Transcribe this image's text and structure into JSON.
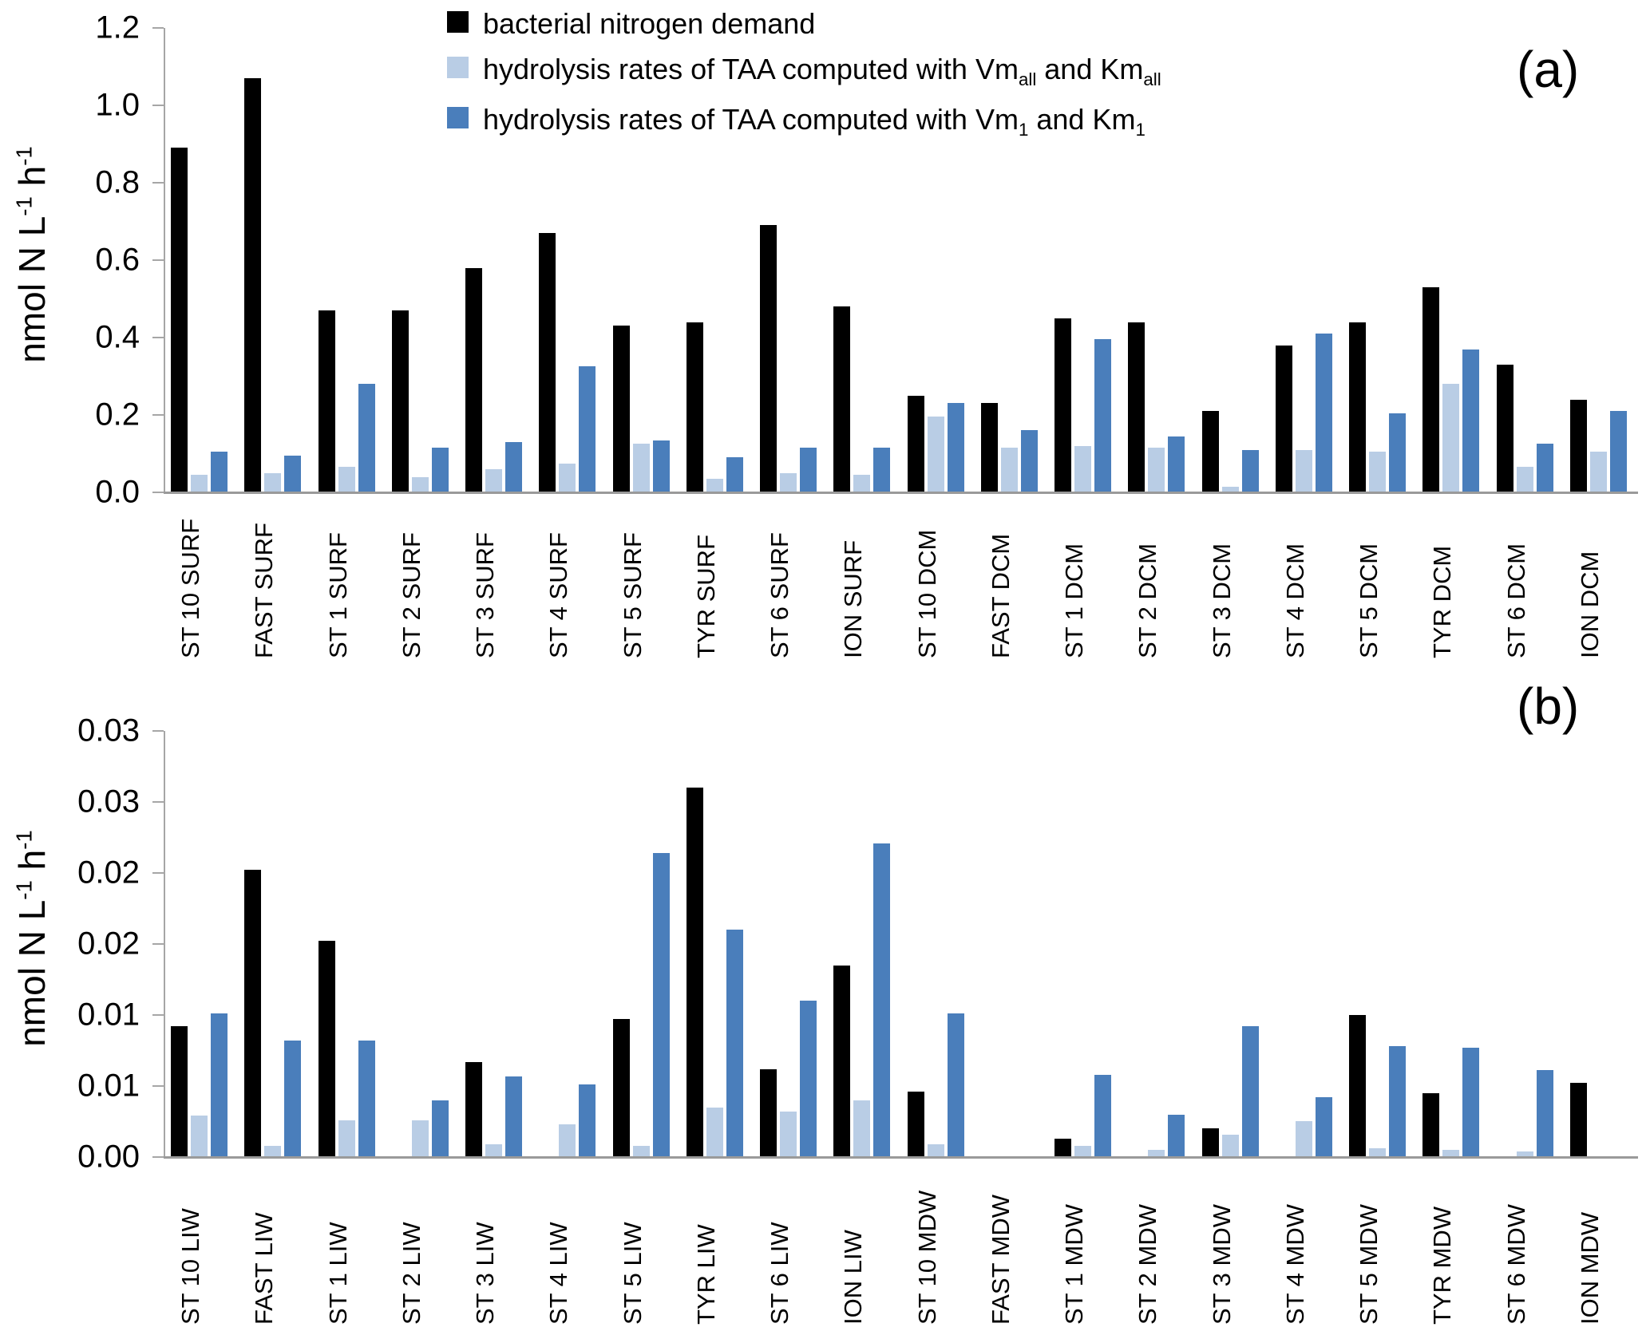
{
  "legend": {
    "items": [
      {
        "label": "bacterial nitrogen demand",
        "color": "#000000"
      },
      {
        "before": "hydrolysis rates of TAA computed with Vm",
        "sub1": "all",
        "mid": " and Km",
        "sub2": "all",
        "color": "#b9cde5"
      },
      {
        "before": "hydrolysis rates of TAA computed with Vm",
        "sub1": "1",
        "mid": " and Km",
        "sub2": "1",
        "color": "#4a7ebb"
      }
    ]
  },
  "y_axis_title": {
    "parts": [
      {
        "t": "nmol N L"
      },
      {
        "sup": "-1"
      },
      {
        "t": " h"
      },
      {
        "sup": "-1"
      }
    ]
  },
  "chart_data": [
    {
      "type": "bar",
      "panel_label": "(a)",
      "title": "",
      "xlabel": "",
      "ylabel": "nmol N L-1 h-1",
      "ylim": [
        0,
        1.2
      ],
      "grid": false,
      "legend_position": "top-center",
      "y_tick_labels": [
        "0.0",
        "0.2",
        "0.4",
        "0.6",
        "0.8",
        "1.0",
        "1.2"
      ],
      "categories": [
        "ST 10 SURF",
        "FAST SURF",
        "ST 1 SURF",
        "ST 2 SURF",
        "ST 3 SURF",
        "ST 4 SURF",
        "ST 5 SURF",
        "TYR SURF",
        "ST 6 SURF",
        "ION SURF",
        "ST 10 DCM",
        "FAST DCM",
        "ST 1 DCM",
        "ST 2 DCM",
        "ST 3 DCM",
        "ST 4 DCM",
        "ST 5 DCM",
        "TYR DCM",
        "ST 6 DCM",
        "ION DCM"
      ],
      "series": [
        {
          "name": "bacterial nitrogen demand",
          "color": "#000000",
          "values": [
            0.89,
            1.07,
            0.47,
            0.47,
            0.58,
            0.67,
            0.43,
            0.44,
            0.69,
            0.48,
            0.25,
            0.23,
            0.45,
            0.44,
            0.21,
            0.38,
            0.44,
            0.53,
            0.33,
            0.24
          ]
        },
        {
          "name": "hydrolysis rates of TAA computed with Vmall and Kmall",
          "color": "#b9cde5",
          "values": [
            0.045,
            0.05,
            0.065,
            0.04,
            0.06,
            0.075,
            0.125,
            0.035,
            0.05,
            0.045,
            0.195,
            0.115,
            0.12,
            0.115,
            0.015,
            0.11,
            0.105,
            0.28,
            0.065,
            0.105
          ]
        },
        {
          "name": "hydrolysis rates of TAA computed with Vm1 and Km1",
          "color": "#4a7ebb",
          "values": [
            0.105,
            0.095,
            0.28,
            0.115,
            0.13,
            0.325,
            0.135,
            0.09,
            0.115,
            0.115,
            0.23,
            0.16,
            0.395,
            0.145,
            0.11,
            0.41,
            0.205,
            0.37,
            0.125,
            0.21
          ]
        }
      ]
    },
    {
      "type": "bar",
      "panel_label": "(b)",
      "title": "",
      "xlabel": "",
      "ylabel": "nmol N L-1 h-1",
      "ylim": [
        0,
        0.03
      ],
      "grid": false,
      "legend_position": "none",
      "y_tick_labels": [
        "0.00",
        "0.01",
        "0.01",
        "0.02",
        "0.02",
        "0.03",
        "0.03"
      ],
      "categories": [
        "ST 10 LIW",
        "FAST LIW",
        "ST 1 LIW",
        "ST 2 LIW",
        "ST 3 LIW",
        "ST 4 LIW",
        "ST 5 LIW",
        "TYR LIW",
        "ST 6 LIW",
        "ION LIW",
        "ST 10 MDW",
        "FAST MDW",
        "ST 1 MDW",
        "ST 2 MDW",
        "ST 3 MDW",
        "ST 4 MDW",
        "ST 5 MDW",
        "TYR MDW",
        "ST 6 MDW",
        "ION MDW"
      ],
      "series": [
        {
          "name": "bacterial nitrogen demand",
          "color": "#000000",
          "values": [
            0.0092,
            0.0202,
            0.0152,
            0,
            0.0067,
            0,
            0.0097,
            0.026,
            0.0062,
            0.0135,
            0.0046,
            0,
            0.0013,
            0,
            0.002,
            0,
            0.01,
            0.0045,
            0,
            0.0052
          ]
        },
        {
          "name": "hydrolysis rates of TAA computed with Vmall and Kmall",
          "color": "#b9cde5",
          "values": [
            0.0029,
            0.0008,
            0.0026,
            0.0026,
            0.0009,
            0.0023,
            0.0008,
            0.0035,
            0.0032,
            0.004,
            0.0009,
            0,
            0.0008,
            0.0005,
            0.0016,
            0.0025,
            0.0006,
            0.0005,
            0.0004,
            0
          ]
        },
        {
          "name": "hydrolysis rates of TAA computed with Vm1 and Km1",
          "color": "#4a7ebb",
          "values": [
            0.0101,
            0.0082,
            0.0082,
            0.004,
            0.0057,
            0.0051,
            0.0214,
            0.016,
            0.011,
            0.0221,
            0.0101,
            0,
            0.0058,
            0.003,
            0.0092,
            0.0042,
            0.0078,
            0.0077,
            0.0061,
            0
          ]
        }
      ]
    }
  ]
}
